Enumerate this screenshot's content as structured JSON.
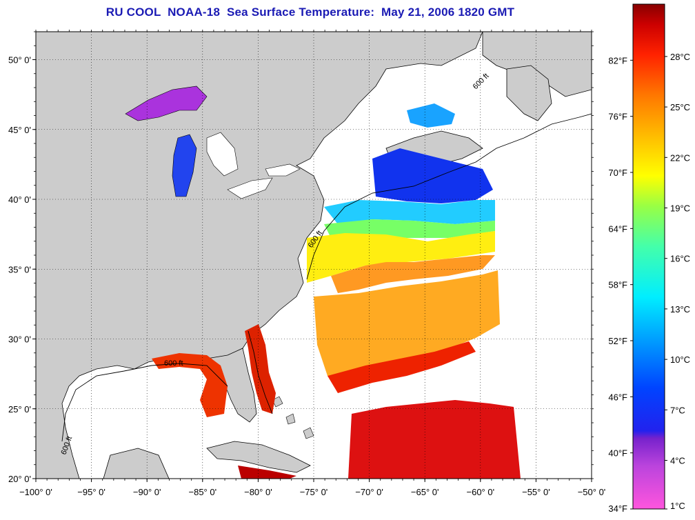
{
  "title": "RU COOL  NOAA-18  Sea Surface Temperature:  May 21, 2006 1820 GMT",
  "map": {
    "lon_range": [
      -100,
      -50
    ],
    "lat_range": [
      20,
      52
    ],
    "lon_tick_labels": [
      "−100° 0'",
      "−95° 0'",
      "−90° 0'",
      "−85° 0'",
      "−80° 0'",
      "−75° 0'",
      "−70° 0'",
      "−65° 0'",
      "−60° 0'",
      "−55° 0'",
      "−50° 0'"
    ],
    "lat_tick_labels": [
      "20° 0'",
      "25° 0'",
      "30° 0'",
      "35° 0'",
      "40° 0'",
      "45° 0'",
      "50° 0'"
    ],
    "grid": "dotted",
    "land_color": "#cccccc",
    "no_data_color": "#ffffff",
    "isobath_label": "600 ft"
  },
  "colorbar": {
    "fahrenheit_labels": [
      "34°F",
      "40°F",
      "46°F",
      "52°F",
      "58°F",
      "64°F",
      "70°F",
      "76°F",
      "82°F"
    ],
    "celsius_labels": [
      "1°C",
      "4°C",
      "7°C",
      "10°C",
      "13°C",
      "16°C",
      "19°C",
      "22°C",
      "25°C",
      "28°C"
    ],
    "colors": [
      "#ff55dd",
      "#9933cc",
      "#2222ee",
      "#0066ff",
      "#00ccff",
      "#33ffcc",
      "#99ff44",
      "#ffff00",
      "#ffaa00",
      "#ff5500",
      "#ee0000",
      "#990000"
    ]
  }
}
